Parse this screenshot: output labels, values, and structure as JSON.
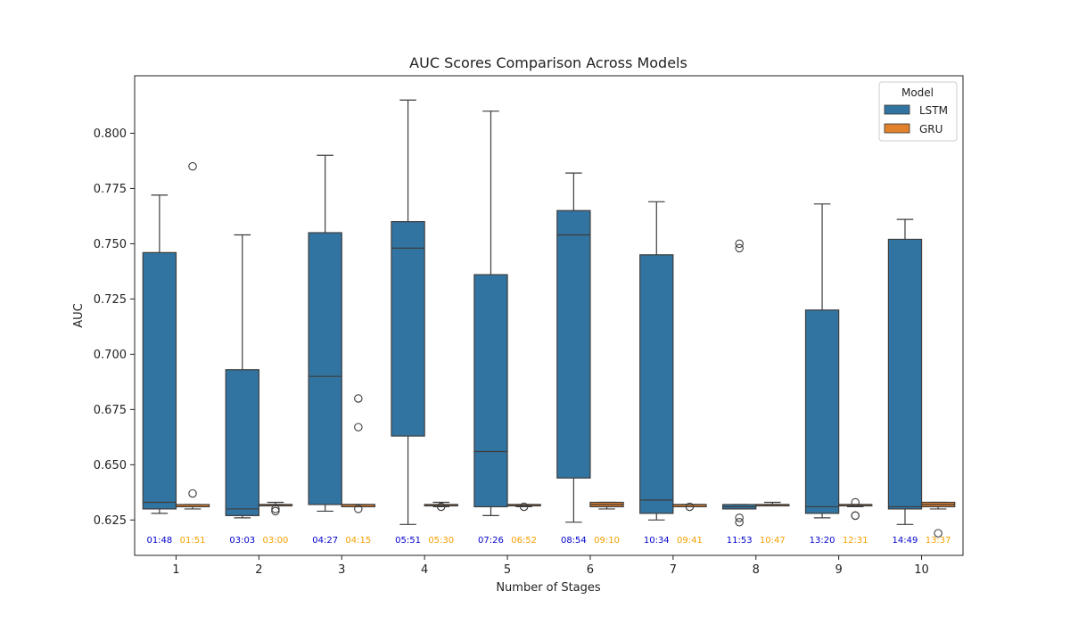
{
  "chart_data": {
    "type": "box",
    "title": "AUC Scores Comparison Across Models",
    "xlabel": "Number of Stages",
    "ylabel": "AUC",
    "categories": [
      "1",
      "2",
      "3",
      "4",
      "5",
      "6",
      "7",
      "8",
      "9",
      "10"
    ],
    "ylim": [
      0.609,
      0.826
    ],
    "yticks": [
      0.625,
      0.65,
      0.675,
      0.7,
      0.725,
      0.75,
      0.775,
      0.8
    ],
    "ytick_labels": [
      "0.625",
      "0.650",
      "0.675",
      "0.700",
      "0.725",
      "0.750",
      "0.775",
      "0.800"
    ],
    "grid": false,
    "legend": {
      "title": "Model",
      "placement": "top-right"
    },
    "series": [
      {
        "name": "LSTM",
        "color": "#3274a1",
        "boxes": [
          {
            "whislo": 0.628,
            "q1": 0.63,
            "med": 0.633,
            "q3": 0.746,
            "whishi": 0.772,
            "fliers": [],
            "time": "01:48"
          },
          {
            "whislo": 0.626,
            "q1": 0.627,
            "med": 0.63,
            "q3": 0.693,
            "whishi": 0.754,
            "fliers": [],
            "time": "03:03"
          },
          {
            "whislo": 0.629,
            "q1": 0.632,
            "med": 0.69,
            "q3": 0.755,
            "whishi": 0.79,
            "fliers": [],
            "time": "04:27"
          },
          {
            "whislo": 0.623,
            "q1": 0.663,
            "med": 0.748,
            "q3": 0.76,
            "whishi": 0.815,
            "fliers": [],
            "time": "05:51"
          },
          {
            "whislo": 0.627,
            "q1": 0.631,
            "med": 0.656,
            "q3": 0.736,
            "whishi": 0.81,
            "fliers": [],
            "time": "07:26"
          },
          {
            "whislo": 0.624,
            "q1": 0.644,
            "med": 0.754,
            "q3": 0.765,
            "whishi": 0.782,
            "fliers": [],
            "time": "08:54"
          },
          {
            "whislo": 0.625,
            "q1": 0.628,
            "med": 0.634,
            "q3": 0.745,
            "whishi": 0.769,
            "fliers": [],
            "time": "10:34"
          },
          {
            "whislo": 0.63,
            "q1": 0.63,
            "med": 0.631,
            "q3": 0.632,
            "whishi": 0.632,
            "fliers": [
              0.624,
              0.626,
              0.748,
              0.75
            ],
            "time": "11:53"
          },
          {
            "whislo": 0.626,
            "q1": 0.628,
            "med": 0.631,
            "q3": 0.72,
            "whishi": 0.768,
            "fliers": [],
            "time": "13:20"
          },
          {
            "whislo": 0.623,
            "q1": 0.63,
            "med": 0.631,
            "q3": 0.752,
            "whishi": 0.761,
            "fliers": [],
            "time": "14:49"
          }
        ]
      },
      {
        "name": "GRU",
        "color": "#e1812c",
        "boxes": [
          {
            "whislo": 0.63,
            "q1": 0.631,
            "med": 0.631,
            "q3": 0.632,
            "whishi": 0.632,
            "fliers": [
              0.637,
              0.785
            ],
            "time": "01:51"
          },
          {
            "whislo": 0.632,
            "q1": 0.632,
            "med": 0.632,
            "q3": 0.632,
            "whishi": 0.633,
            "fliers": [
              0.629,
              0.63
            ],
            "time": "03:00"
          },
          {
            "whislo": 0.631,
            "q1": 0.631,
            "med": 0.632,
            "q3": 0.632,
            "whishi": 0.632,
            "fliers": [
              0.63,
              0.667,
              0.68
            ],
            "time": "04:15"
          },
          {
            "whislo": 0.631,
            "q1": 0.632,
            "med": 0.632,
            "q3": 0.632,
            "whishi": 0.633,
            "fliers": [
              0.631
            ],
            "time": "05:30"
          },
          {
            "whislo": 0.631,
            "q1": 0.632,
            "med": 0.632,
            "q3": 0.632,
            "whishi": 0.632,
            "fliers": [
              0.631
            ],
            "time": "06:52"
          },
          {
            "whislo": 0.63,
            "q1": 0.631,
            "med": 0.632,
            "q3": 0.633,
            "whishi": 0.633,
            "fliers": [],
            "time": "09:10"
          },
          {
            "whislo": 0.631,
            "q1": 0.631,
            "med": 0.632,
            "q3": 0.632,
            "whishi": 0.632,
            "fliers": [
              0.631
            ],
            "time": "09:41"
          },
          {
            "whislo": 0.632,
            "q1": 0.632,
            "med": 0.632,
            "q3": 0.632,
            "whishi": 0.633,
            "fliers": [],
            "time": "10:47"
          },
          {
            "whislo": 0.631,
            "q1": 0.632,
            "med": 0.632,
            "q3": 0.632,
            "whishi": 0.632,
            "fliers": [
              0.627,
              0.627,
              0.633
            ],
            "time": "12:31"
          },
          {
            "whislo": 0.63,
            "q1": 0.631,
            "med": 0.632,
            "q3": 0.633,
            "whishi": 0.633,
            "fliers": [
              0.619
            ],
            "time": "13:37"
          }
        ]
      }
    ],
    "time_label_colors": {
      "LSTM": "#0000cc",
      "GRU": "#f5a000"
    }
  }
}
